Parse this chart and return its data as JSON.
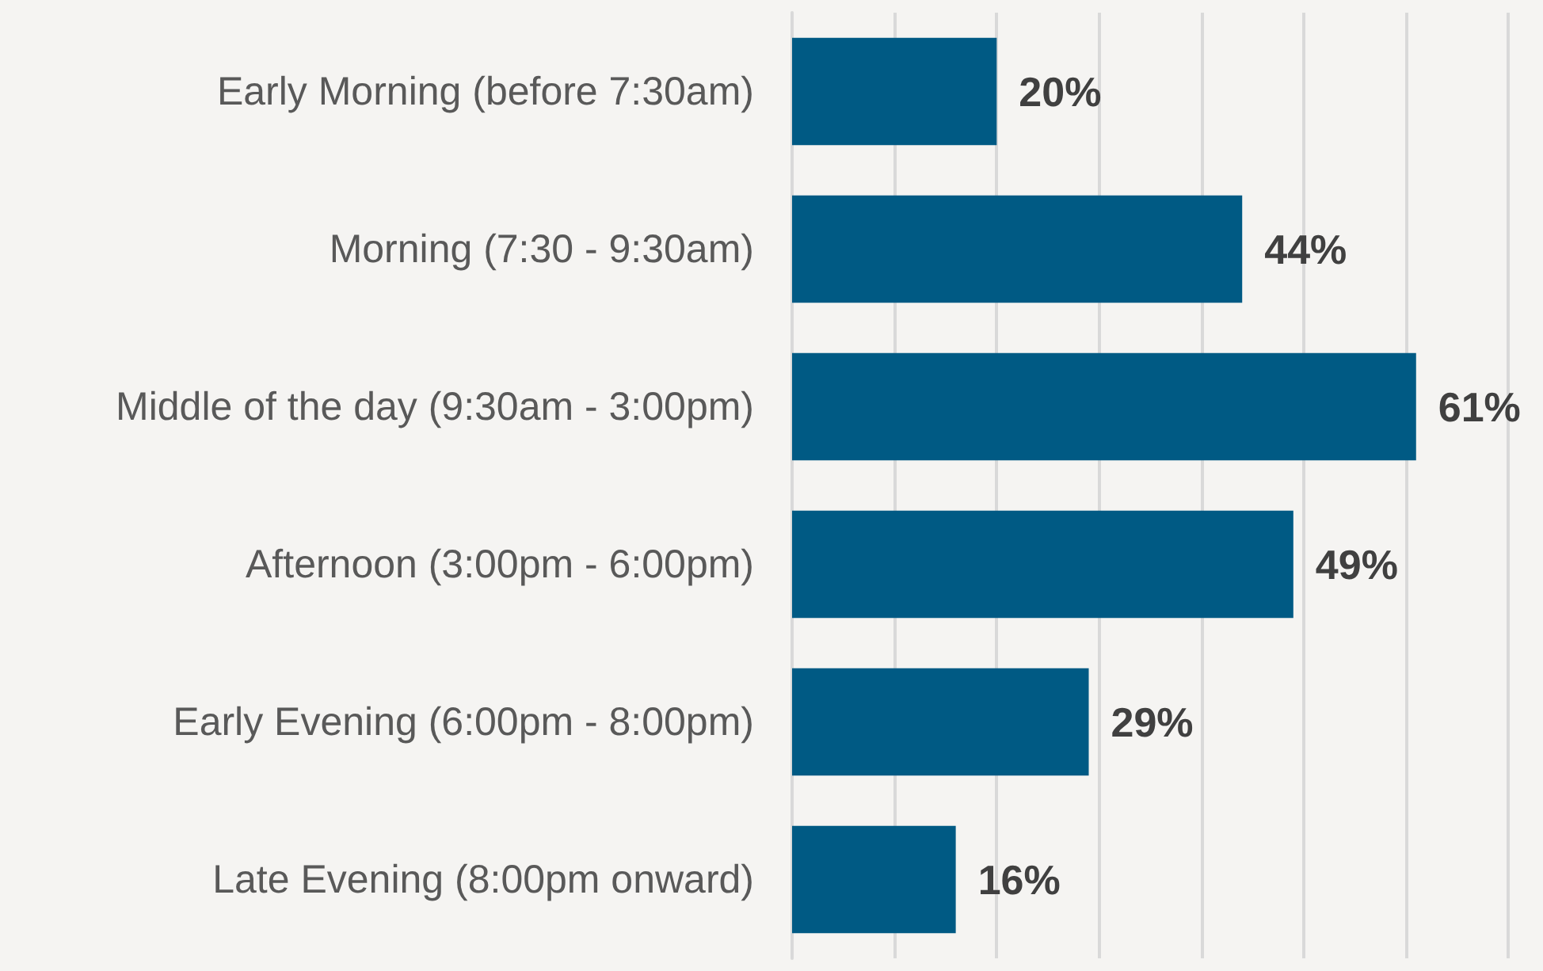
{
  "chart_data": {
    "type": "bar",
    "orientation": "horizontal",
    "categories": [
      "Early Morning (before 7:30am)",
      "Morning (7:30 - 9:30am)",
      "Middle of the day (9:30am - 3:00pm)",
      "Afternoon (3:00pm - 6:00pm)",
      "Early Evening (6:00pm - 8:00pm)",
      "Late Evening (8:00pm onward)"
    ],
    "values": [
      20,
      44,
      61,
      49,
      29,
      16
    ],
    "value_labels": [
      "20%",
      "44%",
      "61%",
      "49%",
      "29%",
      "16%"
    ],
    "color": "#005a84",
    "xlim": [
      0,
      70
    ],
    "xticks": [
      {
        "value": 0,
        "label": null
      },
      {
        "value": 10,
        "label": null
      },
      {
        "value": 20,
        "label": null
      },
      {
        "value": 30,
        "label": null
      },
      {
        "value": 40,
        "label": null
      },
      {
        "value": 50,
        "label": null
      },
      {
        "value": 60,
        "label": null
      },
      {
        "value": 70,
        "label": null
      }
    ],
    "grid": "x",
    "tick_labels": "y"
  }
}
